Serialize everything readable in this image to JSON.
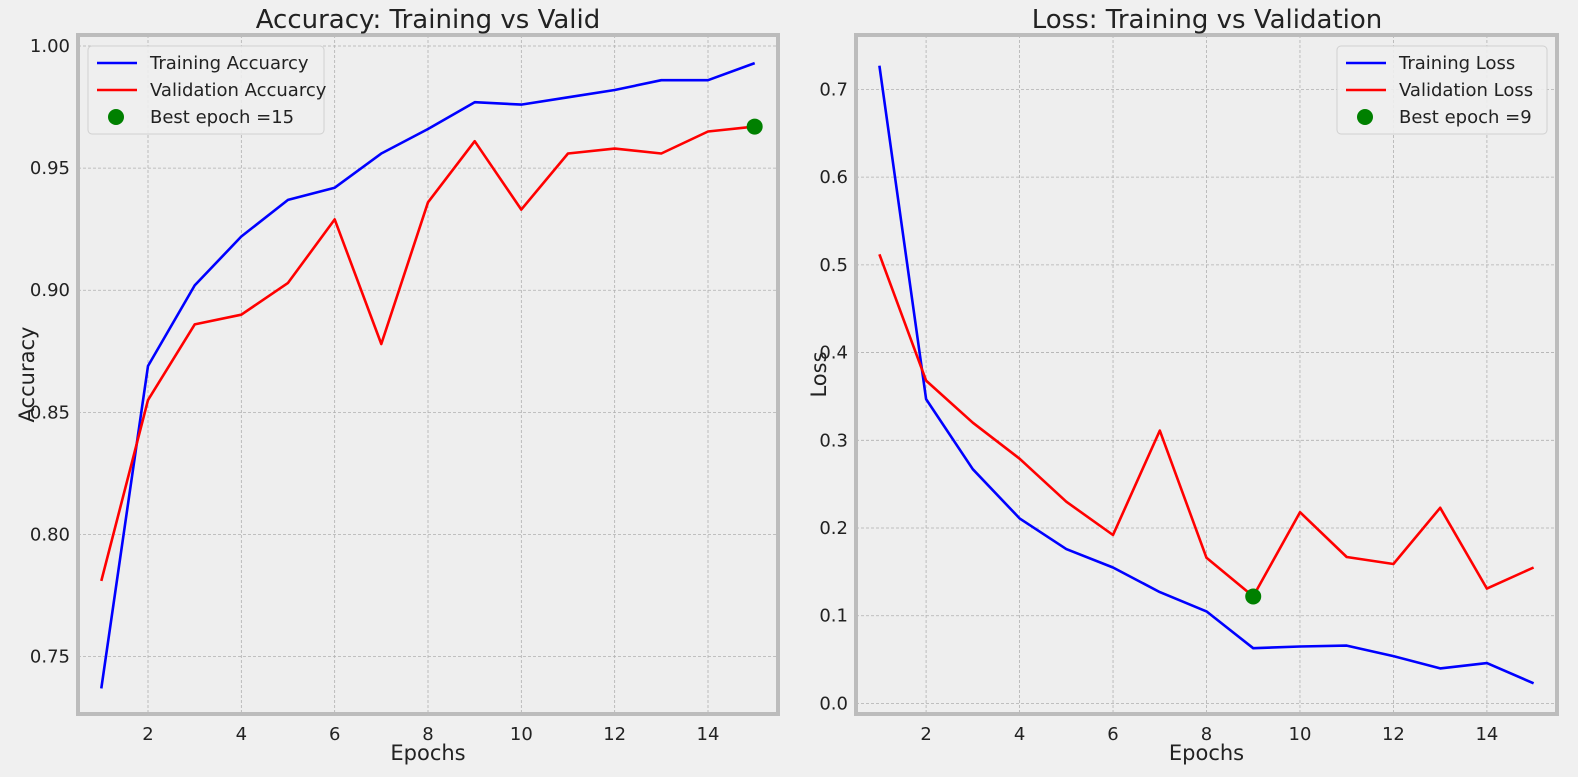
{
  "chart_data": [
    {
      "type": "line",
      "title": "Accuracy: Training vs Valid",
      "xlabel": "Epochs",
      "ylabel": "Accuracy",
      "xlim": [
        0.5,
        15.5
      ],
      "ylim": [
        0.7265,
        1.0045
      ],
      "x_ticks": [
        2,
        4,
        6,
        8,
        10,
        12,
        14
      ],
      "x_tick_labels": [
        "2",
        "4",
        "6",
        "8",
        "10",
        "12",
        "14"
      ],
      "y_ticks": [
        0.75,
        0.8,
        0.85,
        0.9,
        0.95,
        1.0
      ],
      "y_tick_labels": [
        "0.75",
        "0.80",
        "0.85",
        "0.90",
        "0.95",
        "1.00"
      ],
      "grid": true,
      "legend_position": "top-left",
      "x": [
        1,
        2,
        3,
        4,
        5,
        6,
        7,
        8,
        9,
        10,
        11,
        12,
        13,
        14,
        15
      ],
      "series": [
        {
          "name": "Training Accuarcy",
          "color": "#0000ff",
          "values": [
            0.737,
            0.869,
            0.902,
            0.922,
            0.937,
            0.942,
            0.956,
            0.966,
            0.977,
            0.976,
            0.979,
            0.982,
            0.986,
            0.986,
            0.993
          ]
        },
        {
          "name": "Validation Accuarcy",
          "color": "#ff0000",
          "values": [
            0.781,
            0.855,
            0.886,
            0.89,
            0.903,
            0.929,
            0.878,
            0.936,
            0.961,
            0.933,
            0.956,
            0.958,
            0.956,
            0.965,
            0.967
          ]
        }
      ],
      "best_point": {
        "label": "Best epoch =15",
        "x": 15,
        "y": 0.967,
        "color": "#008000"
      }
    },
    {
      "type": "line",
      "title": "Loss: Training vs Validation",
      "xlabel": "Epochs",
      "ylabel": "Loss",
      "xlim": [
        0.5,
        15.5
      ],
      "ylim": [
        -0.012,
        0.762
      ],
      "x_ticks": [
        2,
        4,
        6,
        8,
        10,
        12,
        14
      ],
      "x_tick_labels": [
        "2",
        "4",
        "6",
        "8",
        "10",
        "12",
        "14"
      ],
      "y_ticks": [
        0.0,
        0.1,
        0.2,
        0.3,
        0.4,
        0.5,
        0.6,
        0.7
      ],
      "y_tick_labels": [
        "0.0",
        "0.1",
        "0.2",
        "0.3",
        "0.4",
        "0.5",
        "0.6",
        "0.7"
      ],
      "grid": true,
      "legend_position": "top-right",
      "x": [
        1,
        2,
        3,
        4,
        5,
        6,
        7,
        8,
        9,
        10,
        11,
        12,
        13,
        14,
        15
      ],
      "series": [
        {
          "name": "Training Loss",
          "color": "#0000ff",
          "values": [
            0.727,
            0.347,
            0.267,
            0.211,
            0.176,
            0.155,
            0.127,
            0.105,
            0.063,
            0.065,
            0.066,
            0.054,
            0.04,
            0.046,
            0.023
          ]
        },
        {
          "name": "Validation Loss",
          "color": "#ff0000",
          "values": [
            0.512,
            0.368,
            0.32,
            0.279,
            0.23,
            0.192,
            0.311,
            0.166,
            0.122,
            0.218,
            0.167,
            0.159,
            0.223,
            0.131,
            0.155
          ]
        }
      ],
      "best_point": {
        "label": "Best epoch =9",
        "x": 9,
        "y": 0.122,
        "color": "#008000"
      }
    }
  ]
}
